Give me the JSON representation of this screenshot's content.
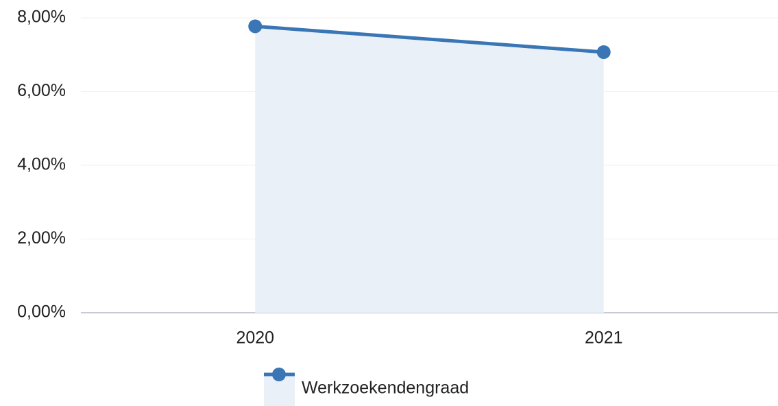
{
  "chart_data": {
    "type": "area",
    "categories": [
      "2020",
      "2021"
    ],
    "series": [
      {
        "name": "Werkzoekendengraad",
        "color": "#3a76b5",
        "fill": "#e9f0f7",
        "values": [
          7.77,
          7.07
        ]
      }
    ],
    "ylim": [
      0,
      8
    ],
    "yticks": [
      {
        "value": 0,
        "label": "0,00%"
      },
      {
        "value": 2,
        "label": "2,00%"
      },
      {
        "value": 4,
        "label": "4,00%"
      },
      {
        "value": 6,
        "label": "6,00%"
      },
      {
        "value": 8,
        "label": "8,00%"
      }
    ],
    "grid": true,
    "legend": "bottom"
  }
}
